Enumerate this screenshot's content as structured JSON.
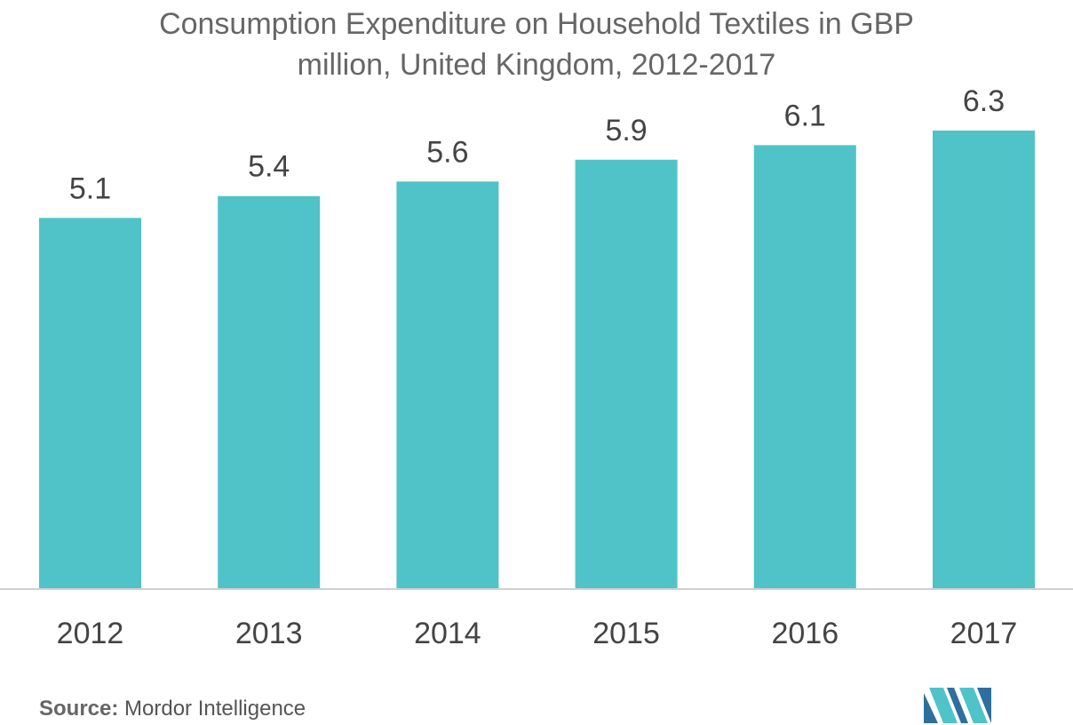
{
  "chart_data": {
    "type": "bar",
    "title_lines": [
      "Consumption Expenditure on Household Textiles in GBP",
      "million, United Kingdom, 2012-2017"
    ],
    "categories": [
      "2012",
      "2013",
      "2014",
      "2015",
      "2016",
      "2017"
    ],
    "values": [
      5.1,
      5.4,
      5.6,
      5.9,
      6.1,
      6.3
    ],
    "value_labels": [
      "5.1",
      "5.4",
      "5.6",
      "5.9",
      "6.1",
      "6.3"
    ],
    "ylim": [
      0,
      6.3
    ],
    "grid": false,
    "legend": "none",
    "xlabel": "",
    "ylabel": "",
    "bar_color": "#4fc3c8",
    "axis_color": "#d0d0d0"
  },
  "source": {
    "label": "Source:",
    "text": "Mordor Intelligence"
  },
  "logo": {
    "icon": "mordor-intelligence-logo-icon",
    "colors": [
      "#2e6f9e",
      "#4fc3c8"
    ]
  }
}
